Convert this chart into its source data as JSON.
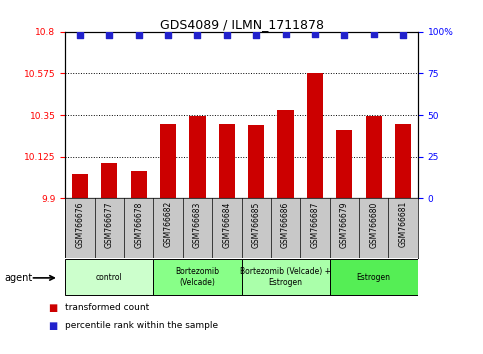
{
  "title": "GDS4089 / ILMN_1711878",
  "samples": [
    "GSM766676",
    "GSM766677",
    "GSM766678",
    "GSM766682",
    "GSM766683",
    "GSM766684",
    "GSM766685",
    "GSM766686",
    "GSM766687",
    "GSM766679",
    "GSM766680",
    "GSM766681"
  ],
  "bar_values": [
    10.03,
    10.09,
    10.05,
    10.3,
    10.345,
    10.3,
    10.295,
    10.38,
    10.575,
    10.27,
    10.345,
    10.3
  ],
  "percentile_values": [
    98,
    98,
    98,
    98,
    98,
    98,
    98,
    99,
    99,
    98,
    99,
    98
  ],
  "bar_color": "#cc0000",
  "dot_color": "#2222cc",
  "ylim_left": [
    9.9,
    10.8
  ],
  "ylim_right": [
    0,
    100
  ],
  "yticks_left": [
    9.9,
    10.125,
    10.35,
    10.575,
    10.8
  ],
  "ytick_labels_left": [
    "9.9",
    "10.125",
    "10.35",
    "10.575",
    "10.8"
  ],
  "yticks_right": [
    0,
    25,
    50,
    75,
    100
  ],
  "ytick_labels_right": [
    "0",
    "25",
    "50",
    "75",
    "100%"
  ],
  "groups": [
    {
      "label": "control",
      "start": 0,
      "end": 3,
      "color": "#ccffcc"
    },
    {
      "label": "Bortezomib\n(Velcade)",
      "start": 3,
      "end": 6,
      "color": "#88ff88"
    },
    {
      "label": "Bortezomib (Velcade) +\nEstrogen",
      "start": 6,
      "end": 9,
      "color": "#aaffaa"
    },
    {
      "label": "Estrogen",
      "start": 9,
      "end": 12,
      "color": "#55ee55"
    }
  ],
  "legend_items": [
    {
      "color": "#cc0000",
      "label": "transformed count"
    },
    {
      "color": "#2222cc",
      "label": "percentile rank within the sample"
    }
  ],
  "agent_label": "agent",
  "bar_bottom": 9.9,
  "tick_area_color": "#c8c8c8"
}
